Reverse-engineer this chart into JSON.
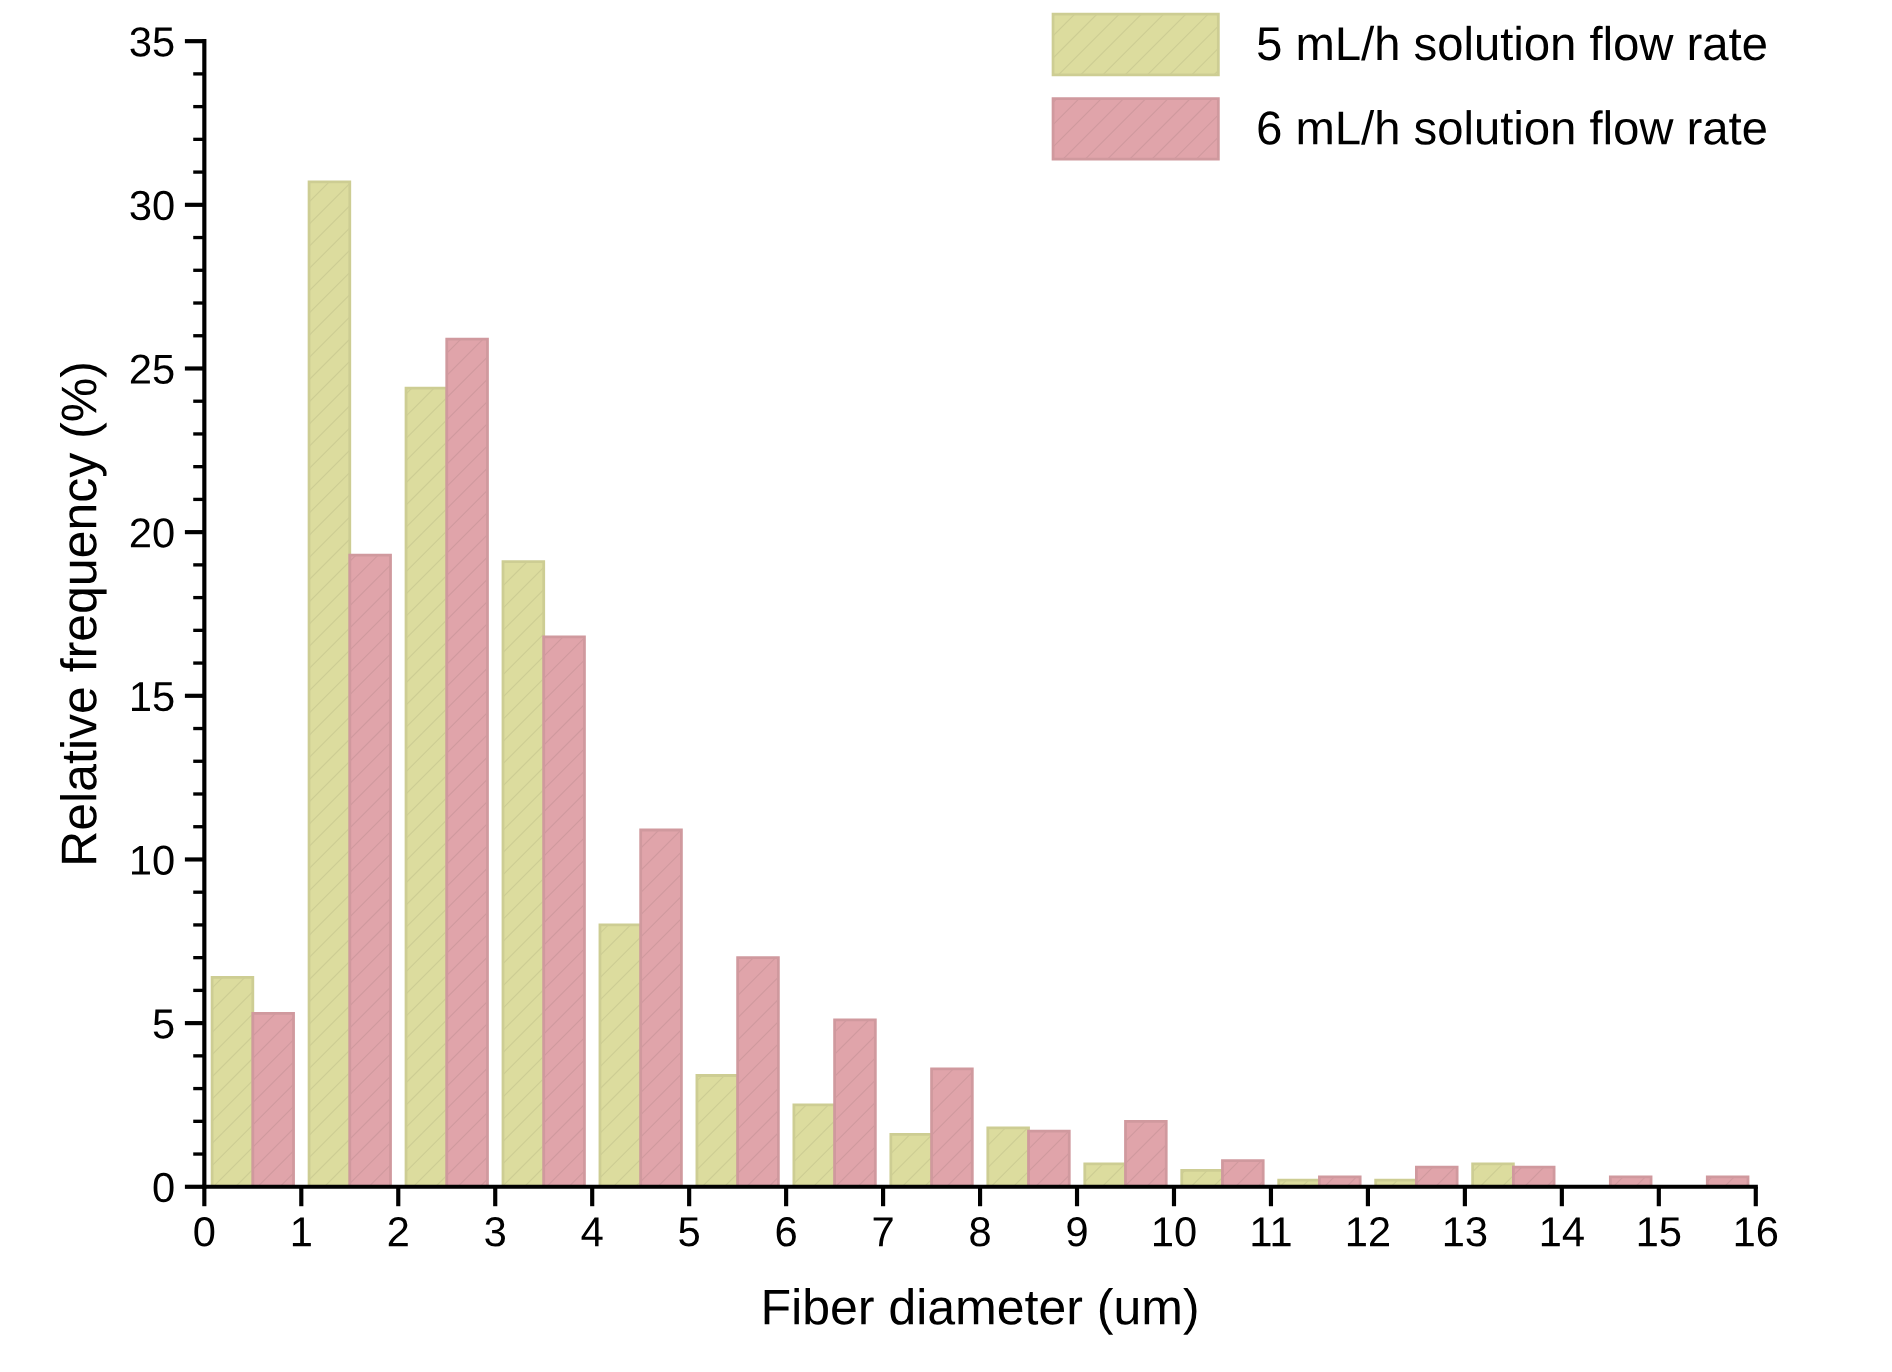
{
  "chart_data": {
    "type": "bar",
    "xlabel": "Fiber diameter (um)",
    "ylabel": "Relative frequency (%)",
    "x": [
      0.5,
      1.5,
      2.5,
      3.5,
      4.5,
      5.5,
      6.5,
      7.5,
      8.5,
      9.5,
      10.5,
      11.5,
      12.5,
      13.5,
      14.5,
      15.5
    ],
    "series": [
      {
        "name": "5 mL/h solution flow rate",
        "color": "#dcdc9e",
        "values": [
          6.4,
          30.7,
          24.4,
          19.1,
          8.0,
          3.4,
          2.5,
          1.6,
          1.8,
          0.7,
          0.5,
          0.2,
          0.2,
          0.7,
          0,
          0
        ]
      },
      {
        "name": "6 mL/h solution flow rate",
        "color": "#e0a4aa",
        "values": [
          5.3,
          19.3,
          25.9,
          16.8,
          10.9,
          7.0,
          5.1,
          3.6,
          1.7,
          2.0,
          0.8,
          0.3,
          0.6,
          0.6,
          0.3,
          0.3
        ]
      }
    ],
    "xlim": [
      0,
      16
    ],
    "xticks": [
      0,
      1,
      2,
      3,
      4,
      5,
      6,
      7,
      8,
      9,
      10,
      11,
      12,
      13,
      14,
      15,
      16
    ],
    "ylim": [
      0,
      35
    ],
    "yticks": [
      0,
      {
        "value": 1,
        "label": null
      },
      {
        "value": 2,
        "label": null
      },
      {
        "value": 3,
        "label": null
      },
      {
        "value": 4,
        "label": null
      },
      5,
      {
        "value": 6,
        "label": null
      },
      {
        "value": 7,
        "label": null
      },
      {
        "value": 8,
        "label": null
      },
      {
        "value": 9,
        "label": null
      },
      10,
      {
        "value": 11,
        "label": null
      },
      {
        "value": 12,
        "label": null
      },
      {
        "value": 13,
        "label": null
      },
      {
        "value": 14,
        "label": null
      },
      15,
      {
        "value": 16,
        "label": null
      },
      {
        "value": 17,
        "label": null
      },
      {
        "value": 18,
        "label": null
      },
      {
        "value": 19,
        "label": null
      },
      20,
      {
        "value": 21,
        "label": null
      },
      {
        "value": 22,
        "label": null
      },
      {
        "value": 23,
        "label": null
      },
      {
        "value": 24,
        "label": null
      },
      25,
      {
        "value": 26,
        "label": null
      },
      {
        "value": 27,
        "label": null
      },
      {
        "value": 28,
        "label": null
      },
      {
        "value": 29,
        "label": null
      },
      30,
      {
        "value": 31,
        "label": null
      },
      {
        "value": 32,
        "label": null
      },
      {
        "value": 33,
        "label": null
      },
      {
        "value": 34,
        "label": null
      },
      35
    ],
    "grid": false,
    "legend": "top right"
  }
}
